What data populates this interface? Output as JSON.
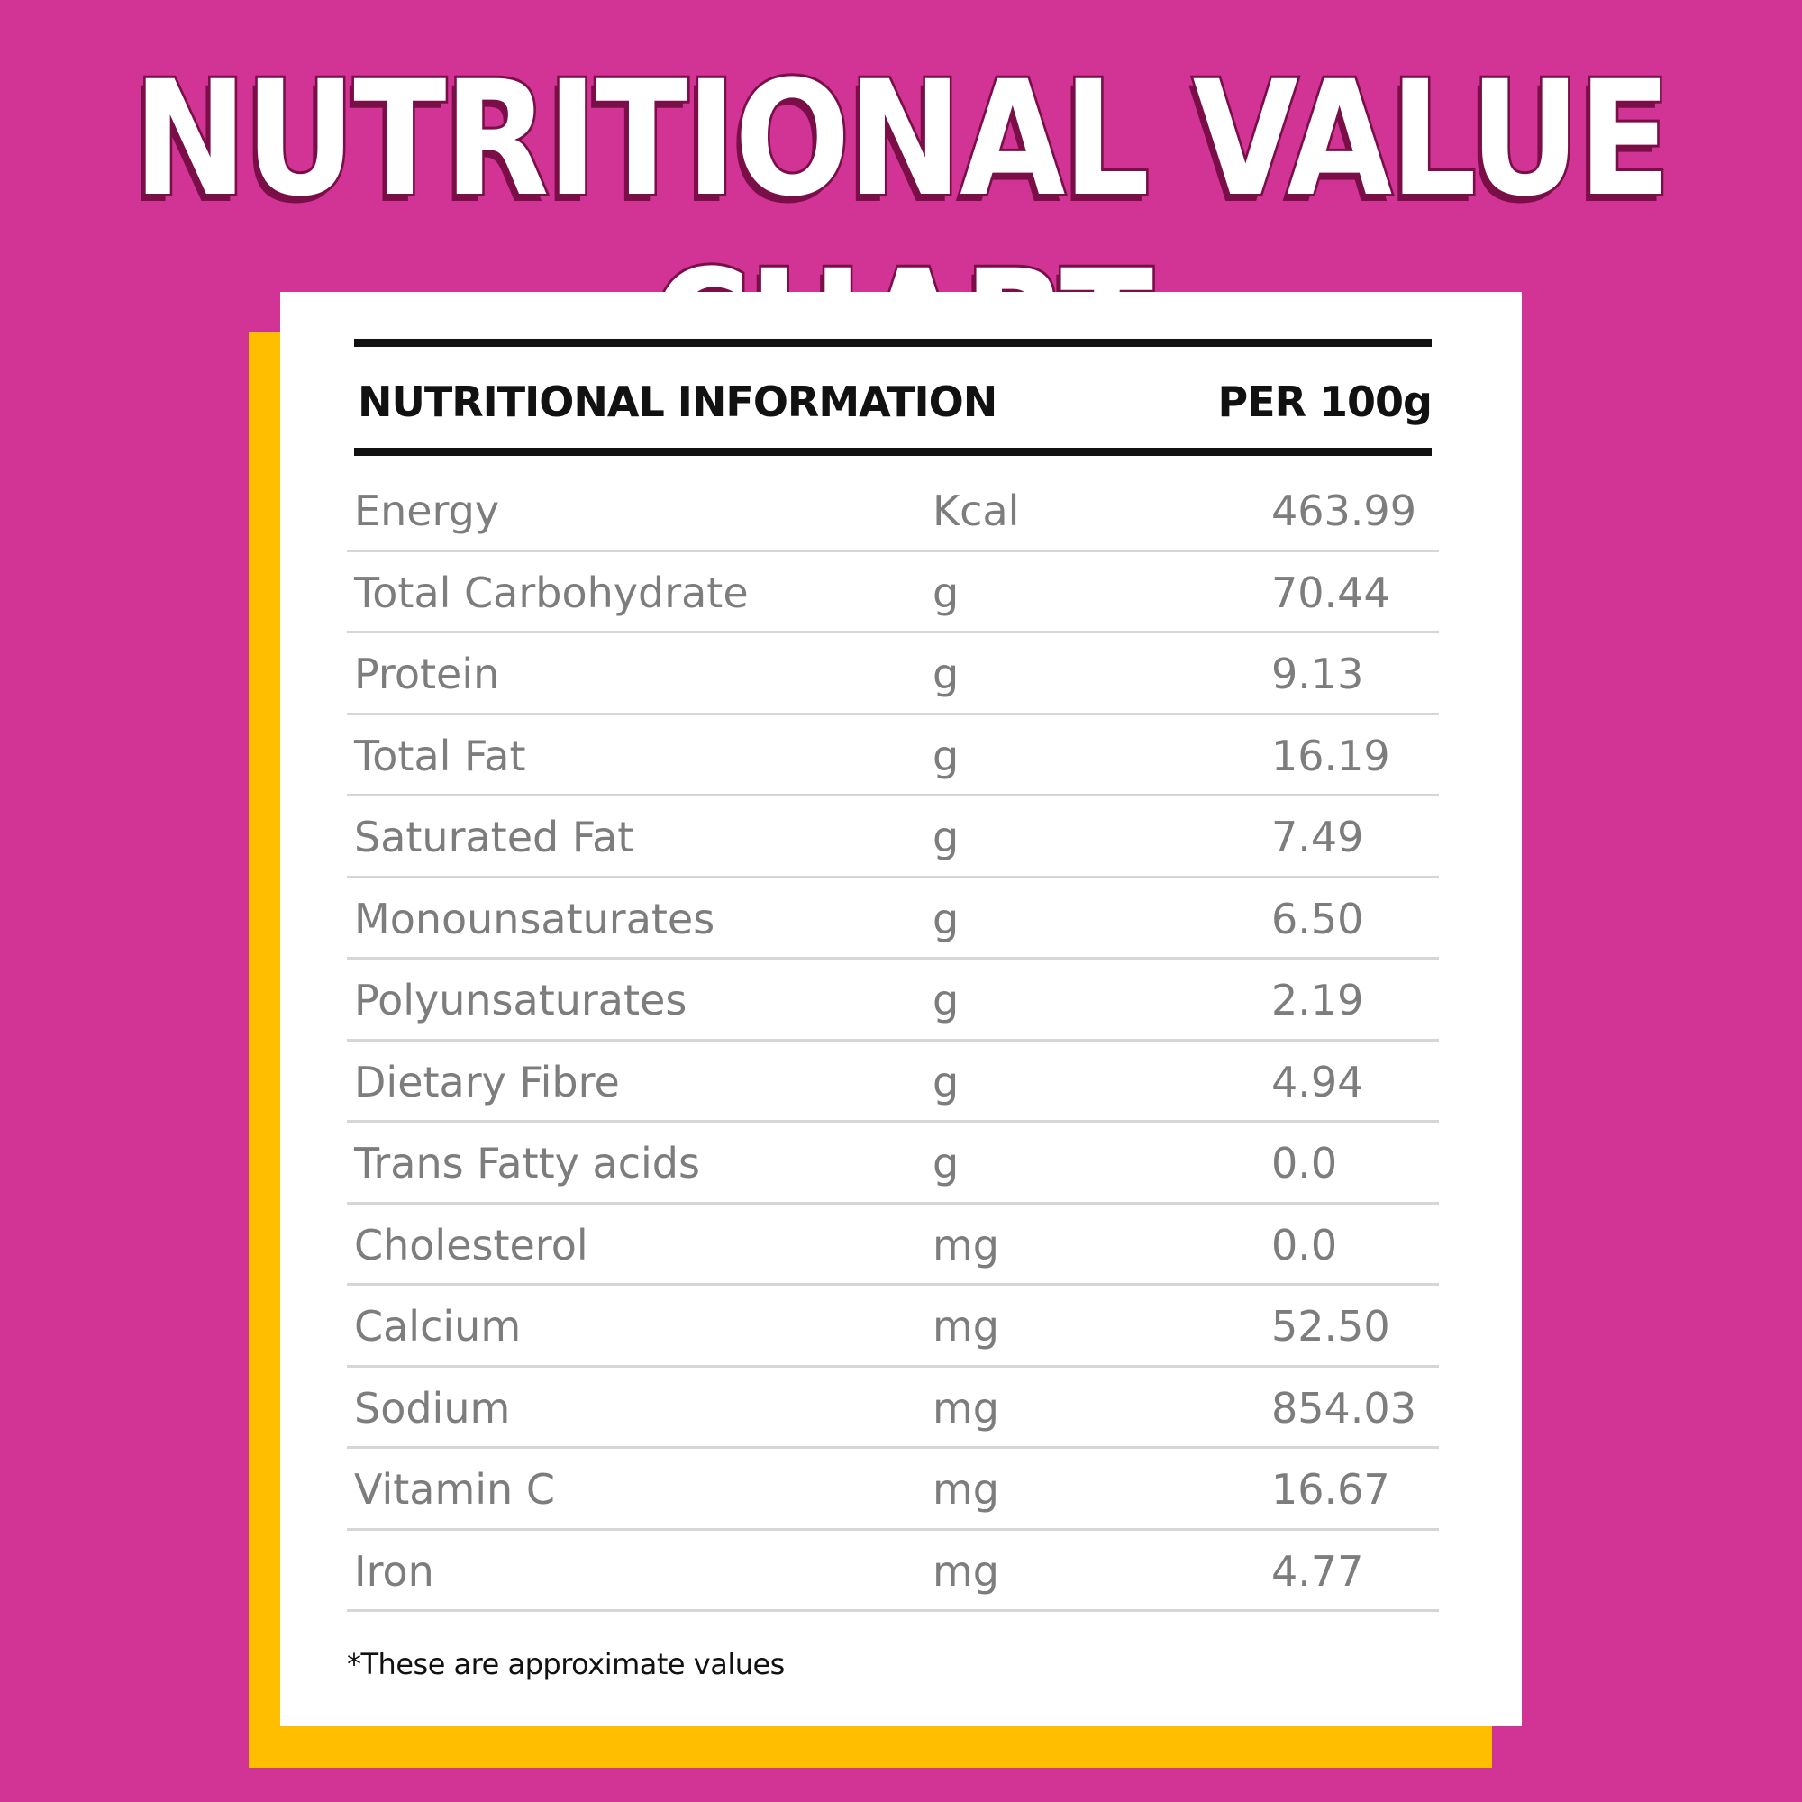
{
  "title": "NUTRITIONAL VALUE CHART",
  "colors": {
    "background": "#D23496",
    "accent_card": "#FFBE00",
    "card": "#FFFFFF",
    "title_outline": "#7A0F48"
  },
  "table": {
    "header_left": "NUTRITIONAL INFORMATION",
    "header_right": "PER 100g",
    "rows": [
      {
        "name": "Energy",
        "unit": "Kcal",
        "value": "463.99"
      },
      {
        "name": "Total Carbohydrate",
        "unit": "g",
        "value": "70.44"
      },
      {
        "name": "Protein",
        "unit": "g",
        "value": "9.13"
      },
      {
        "name": "Total Fat",
        "unit": "g",
        "value": "16.19"
      },
      {
        "name": "Saturated Fat",
        "unit": "g",
        "value": "7.49"
      },
      {
        "name": "Monounsaturates",
        "unit": "g",
        "value": "6.50"
      },
      {
        "name": "Polyunsaturates",
        "unit": "g",
        "value": "2.19"
      },
      {
        "name": "Dietary Fibre",
        "unit": "g",
        "value": "4.94"
      },
      {
        "name": "Trans Fatty acids",
        "unit": "g",
        "value": "0.0"
      },
      {
        "name": "Cholesterol",
        "unit": "mg",
        "value": "0.0"
      },
      {
        "name": "Calcium",
        "unit": "mg",
        "value": "52.50"
      },
      {
        "name": "Sodium",
        "unit": "mg",
        "value": "854.03"
      },
      {
        "name": "Vitamin C",
        "unit": "mg",
        "value": "16.67"
      },
      {
        "name": "Iron",
        "unit": "mg",
        "value": "4.77"
      }
    ]
  },
  "footnote": "*These are approximate values"
}
